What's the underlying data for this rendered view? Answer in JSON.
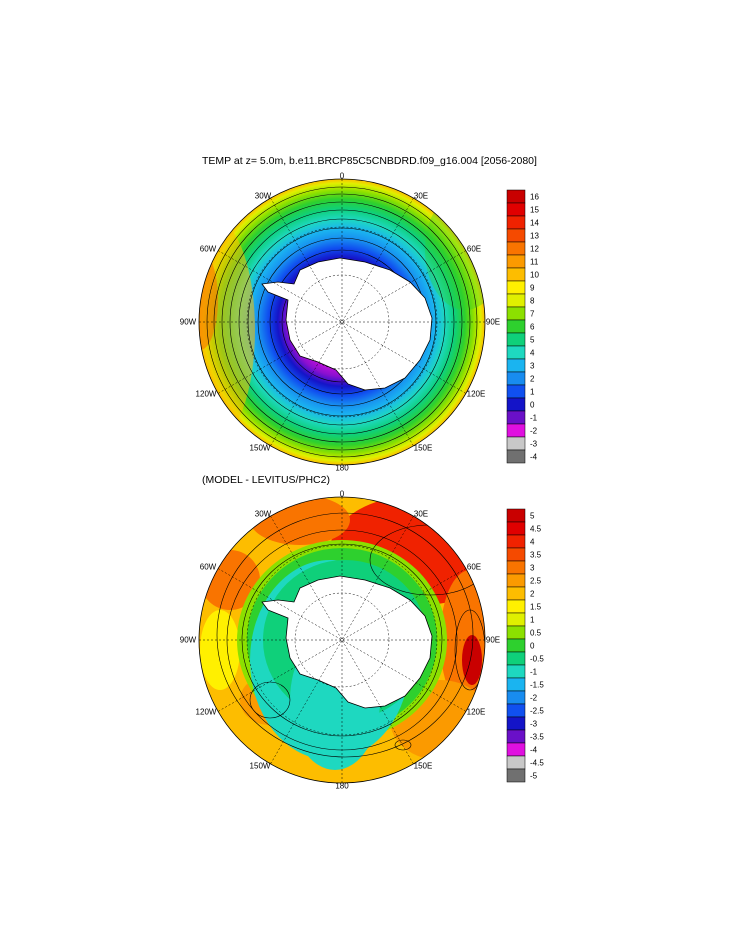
{
  "colors": {
    "land": "#ffffff",
    "coast": "#000000",
    "grid": "#000000"
  },
  "icons": {
    "continent": "antarctica-shape"
  },
  "map1": {
    "title": "TEMP at z=   5.0m, b.e11.BRCP85C5CNBDRD.f09_g16.004 [2056-2080]",
    "labels": {
      "top": "0",
      "bottom": "180",
      "left": "90W",
      "right": "90E",
      "lon30w": "30W",
      "lon30e": "30E",
      "lon60w": "60W",
      "lon60e": "60E",
      "lon120w": "120W",
      "lon120e": "120E",
      "lon150w": "150W",
      "lon150e": "150E"
    },
    "colorbar": {
      "levels": [
        "16",
        "15",
        "14",
        "13",
        "12",
        "11",
        "10",
        "9",
        "8",
        "7",
        "6",
        "5",
        "4",
        "3",
        "2",
        "1",
        "0",
        "-1",
        "-2",
        "-3",
        "-4"
      ],
      "colors": [
        "#c90000",
        "#e00000",
        "#f02200",
        "#f54a00",
        "#f97400",
        "#fb9a00",
        "#fdbd00",
        "#fff000",
        "#e0f000",
        "#8ce000",
        "#2ed02e",
        "#0fd07a",
        "#1ed8c0",
        "#1ab4f0",
        "#188cf0",
        "#1050f0",
        "#1414c8",
        "#6a10c8",
        "#e010e0",
        "#c8c8c8",
        "#707070"
      ]
    }
  },
  "map2": {
    "title": "(MODEL - LEVITUS/PHC2)",
    "labels": {
      "top": "0",
      "bottom": "180",
      "left": "90W",
      "right": "90E",
      "lon30w": "30W",
      "lon30e": "30E",
      "lon60w": "60W",
      "lon60e": "60E",
      "lon120w": "120W",
      "lon120e": "120E",
      "lon150w": "150W",
      "lon150e": "150E"
    },
    "colorbar": {
      "levels": [
        "5",
        "4.5",
        "4",
        "3.5",
        "3",
        "2.5",
        "2",
        "1.5",
        "1",
        "0.5",
        "0",
        "-0.5",
        "-1",
        "-1.5",
        "-2",
        "-2.5",
        "-3",
        "-3.5",
        "-4",
        "-4.5",
        "-5"
      ],
      "colors": [
        "#c90000",
        "#e00000",
        "#f02200",
        "#f54a00",
        "#f97400",
        "#fb9a00",
        "#fdbd00",
        "#fff000",
        "#e0f000",
        "#8ce000",
        "#2ed02e",
        "#0fd07a",
        "#1ed8c0",
        "#1ab4f0",
        "#188cf0",
        "#1050f0",
        "#1414c8",
        "#6a10c8",
        "#e010e0",
        "#c8c8c8",
        "#707070"
      ]
    }
  }
}
